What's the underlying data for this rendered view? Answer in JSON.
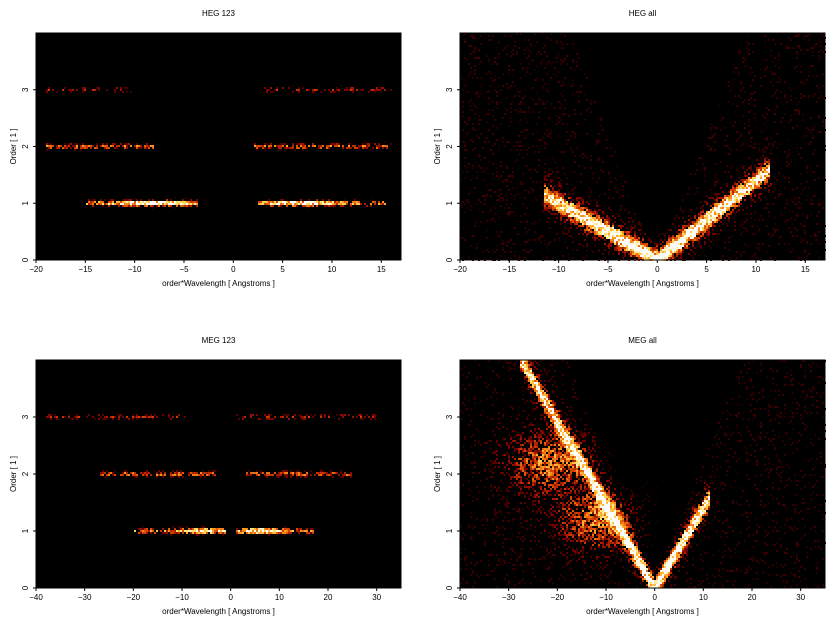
{
  "chart_data": [
    {
      "type": "heatmap",
      "title": "HEG 123",
      "xlabel": "order*Wavelength [ Angstroms ]",
      "ylabel": "Order [ 1 ]",
      "xlim": [
        -20,
        17
      ],
      "ylim": [
        0,
        4
      ],
      "xticks": [
        -20,
        -15,
        -10,
        -5,
        0,
        5,
        10,
        15
      ],
      "yticks": [
        0,
        1,
        2,
        3
      ],
      "colormap": [
        "#000000",
        "#7a0000",
        "#d23c00",
        "#ff9a1e",
        "#ffe066",
        "#ffffff"
      ],
      "background": "#000000",
      "features": [
        {
          "kind": "band",
          "order": 1,
          "x_range": [
            [
              -15,
              -3.5
            ],
            [
              2.5,
              15.5
            ]
          ],
          "peak": [
            -8,
            6
          ],
          "intensity": "high"
        },
        {
          "kind": "band",
          "order": 2,
          "x_range": [
            [
              -19,
              -8
            ],
            [
              2,
              16
            ]
          ],
          "intensity": "medium"
        },
        {
          "kind": "band",
          "order": 3,
          "x_range": [
            [
              -19,
              -10
            ],
            [
              3,
              16
            ]
          ],
          "intensity": "low"
        }
      ]
    },
    {
      "type": "heatmap",
      "title": "HEG all",
      "xlabel": "order*Wavelength [ Angstroms ]",
      "ylabel": "Order [ 1 ]",
      "xlim": [
        -20,
        17
      ],
      "ylim": [
        0,
        4
      ],
      "xticks": [
        -20,
        -15,
        -10,
        -5,
        0,
        5,
        10,
        15
      ],
      "yticks": [
        0,
        1,
        2,
        3
      ],
      "colormap": [
        "#000000",
        "#7a0000",
        "#d23c00",
        "#ff9a1e",
        "#ffe066",
        "#ffffff"
      ],
      "background": "#000000",
      "features": [
        {
          "kind": "arm",
          "from": [
            0,
            0
          ],
          "to": [
            -10,
            1.0
          ],
          "intensity": "high"
        },
        {
          "kind": "arm",
          "from": [
            0,
            0
          ],
          "to": [
            10,
            1.4
          ],
          "intensity": "high"
        },
        {
          "kind": "scatter",
          "region": "background",
          "intensity": "low"
        }
      ]
    },
    {
      "type": "heatmap",
      "title": "MEG 123",
      "xlabel": "order*Wavelength [ Angstroms ]",
      "ylabel": "Order [ 1 ]",
      "xlim": [
        -40,
        35
      ],
      "ylim": [
        0,
        4
      ],
      "xticks": [
        -40,
        -30,
        -20,
        -10,
        0,
        10,
        20,
        30
      ],
      "yticks": [
        0,
        1,
        2,
        3
      ],
      "colormap": [
        "#000000",
        "#7a0000",
        "#d23c00",
        "#ff9a1e",
        "#ffe066",
        "#ffffff"
      ],
      "background": "#000000",
      "features": [
        {
          "kind": "band",
          "order": 1,
          "x_range": [
            [
              -20,
              -1
            ],
            [
              1,
              17
            ]
          ],
          "peak": [
            -6,
            6
          ],
          "intensity": "high"
        },
        {
          "kind": "band",
          "order": 2,
          "x_range": [
            [
              -27,
              -3
            ],
            [
              3,
              25
            ]
          ],
          "intensity": "medium"
        },
        {
          "kind": "band",
          "order": 3,
          "x_range": [
            [
              -38,
              -9
            ],
            [
              1,
              30
            ]
          ],
          "intensity": "low"
        }
      ]
    },
    {
      "type": "heatmap",
      "title": "MEG all",
      "xlabel": "order*Wavelength [ Angstroms ]",
      "ylabel": "Order [ 1 ]",
      "xlim": [
        -40,
        35
      ],
      "ylim": [
        0,
        4
      ],
      "xticks": [
        -40,
        -30,
        -20,
        -10,
        0,
        10,
        20,
        30
      ],
      "yticks": [
        0,
        1,
        2,
        3
      ],
      "colormap": [
        "#000000",
        "#7a0000",
        "#d23c00",
        "#ff9a1e",
        "#ffe066",
        "#ffffff"
      ],
      "background": "#000000",
      "features": [
        {
          "kind": "arm",
          "from": [
            0,
            0
          ],
          "to": [
            -24,
            3.5
          ],
          "intensity": "high"
        },
        {
          "kind": "arm",
          "from": [
            0,
            0
          ],
          "to": [
            10,
            1.4
          ],
          "intensity": "high"
        },
        {
          "kind": "blob",
          "center": [
            -12,
            1.2
          ],
          "intensity": "medium"
        },
        {
          "kind": "blob",
          "center": [
            -22,
            2.2
          ],
          "intensity": "medium"
        },
        {
          "kind": "scatter",
          "region": "background",
          "intensity": "low"
        }
      ]
    }
  ]
}
